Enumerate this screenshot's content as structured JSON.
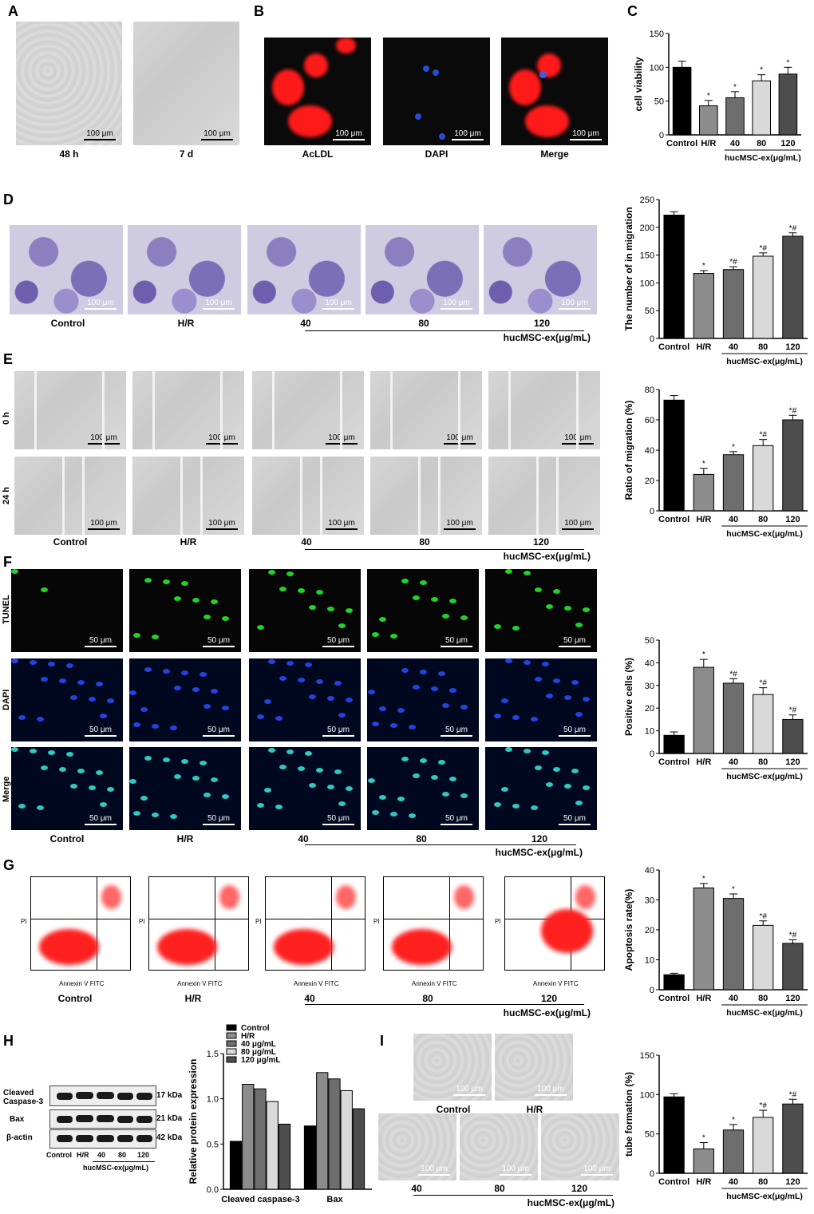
{
  "panels": {
    "A": {
      "label": "A",
      "captions": [
        "48 h",
        "7 d"
      ],
      "scale": "100 μm"
    },
    "B": {
      "label": "B",
      "captions": [
        "AcLDL",
        "DAPI",
        "Merge"
      ],
      "scale": "100 μm"
    },
    "C": {
      "label": "C"
    },
    "D": {
      "label": "D",
      "captions": [
        "Control",
        "H/R",
        "40",
        "80",
        "120"
      ],
      "group": "hucMSC-ex(μg/mL)",
      "scale": "100 μm"
    },
    "E": {
      "label": "E",
      "rows": [
        "0 h",
        "24 h"
      ],
      "captions": [
        "Control",
        "H/R",
        "40",
        "80",
        "120"
      ],
      "group": "hucMSC-ex(μg/mL)",
      "scale": "100 μm"
    },
    "F": {
      "label": "F",
      "rows": [
        "TUNEL",
        "DAPI",
        "Merge"
      ],
      "captions": [
        "Control",
        "H/R",
        "40",
        "80",
        "120"
      ],
      "group": "hucMSC-ex(μg/mL)",
      "scale": "50 μm"
    },
    "G": {
      "label": "G",
      "captions": [
        "Control",
        "H/R",
        "40",
        "80",
        "120"
      ],
      "group": "hucMSC-ex(μg/mL)",
      "xaxis": "Annexin V FITC",
      "yaxis": "PI"
    },
    "H": {
      "label": "H",
      "proteins": [
        "Cleaved Caspase-3",
        "Bax",
        "β-actin"
      ],
      "kda": [
        "17 kDa",
        "21 kDa",
        "42 kDa"
      ],
      "lanes": [
        "Control",
        "H/R",
        "40",
        "80",
        "120"
      ],
      "group": "hucMSC-ex(μg/mL)"
    },
    "I": {
      "label": "I",
      "captions": [
        "Control",
        "H/R",
        "40",
        "80",
        "120"
      ],
      "group": "hucMSC-ex(μg/mL)",
      "scale": "100 μm"
    }
  },
  "chart_data": [
    {
      "id": "C",
      "type": "bar",
      "categories": [
        "Control",
        "H/R",
        "40",
        "80",
        "120"
      ],
      "values": [
        100,
        43,
        55,
        80,
        90
      ],
      "errors": [
        9,
        8,
        9,
        9,
        10
      ],
      "marks": [
        "",
        "*",
        "*",
        "*",
        "*"
      ],
      "ylabel": "cell viability",
      "ylim": [
        0,
        150
      ],
      "yticks": [
        0,
        50,
        100,
        150
      ],
      "group": "hucMSC-ex(μg/mL)"
    },
    {
      "id": "D",
      "type": "bar",
      "categories": [
        "Control",
        "H/R",
        "40",
        "80",
        "120"
      ],
      "values": [
        222,
        117,
        124,
        148,
        184
      ],
      "errors": [
        6,
        5,
        5,
        6,
        6
      ],
      "marks": [
        "",
        "*",
        "*#",
        "*#",
        "*#"
      ],
      "ylabel": "The number of in migration",
      "ylim": [
        0,
        250
      ],
      "yticks": [
        0,
        50,
        100,
        150,
        200,
        250
      ],
      "group": "hucMSC-ex(μg/mL)"
    },
    {
      "id": "E",
      "type": "bar",
      "categories": [
        "Control",
        "H/R",
        "40",
        "80",
        "120"
      ],
      "values": [
        73,
        24,
        37,
        43,
        60
      ],
      "errors": [
        3,
        4,
        2,
        4,
        3
      ],
      "marks": [
        "",
        "*",
        "*",
        "*#",
        "*#"
      ],
      "ylabel": "Ratio of migration (%)",
      "ylim": [
        0,
        80
      ],
      "yticks": [
        0,
        20,
        40,
        60,
        80
      ],
      "group": "hucMSC-ex(μg/mL)"
    },
    {
      "id": "F",
      "type": "bar",
      "categories": [
        "Control",
        "H/R",
        "40",
        "80",
        "120"
      ],
      "values": [
        8,
        38,
        31,
        26,
        15
      ],
      "errors": [
        1.5,
        3.5,
        2,
        3,
        2
      ],
      "marks": [
        "",
        "*",
        "*#",
        "*#",
        "*#"
      ],
      "ylabel": "Positive cells (%)",
      "ylim": [
        0,
        50
      ],
      "yticks": [
        0,
        10,
        20,
        30,
        40,
        50
      ],
      "group": "hucMSC-ex(μg/mL)"
    },
    {
      "id": "G",
      "type": "bar",
      "categories": [
        "Control",
        "H/R",
        "40",
        "80",
        "120"
      ],
      "values": [
        5,
        34,
        30.5,
        21.5,
        15.5
      ],
      "errors": [
        0.5,
        1.5,
        1.5,
        1.5,
        1.2
      ],
      "marks": [
        "",
        "*",
        "*",
        "*#",
        "*#"
      ],
      "ylabel": "Apoptosis rate(%)",
      "ylim": [
        0,
        40
      ],
      "yticks": [
        0,
        10,
        20,
        30,
        40
      ],
      "group": "hucMSC-ex(μg/mL)"
    },
    {
      "id": "H",
      "type": "bar",
      "categories": [
        "Cleaved caspase-3",
        "Bax"
      ],
      "series": [
        {
          "name": "Control",
          "values": [
            0.53,
            0.7
          ]
        },
        {
          "name": "H/R",
          "values": [
            1.16,
            1.29
          ]
        },
        {
          "name": "40 μg/mL",
          "values": [
            1.11,
            1.22
          ]
        },
        {
          "name": "80 μg/mL",
          "values": [
            0.97,
            1.09
          ]
        },
        {
          "name": "120 μg/mL",
          "values": [
            0.72,
            0.89
          ]
        }
      ],
      "ylabel": "Relative protein expression",
      "ylim": [
        0,
        1.5
      ],
      "yticks": [
        0,
        0.5,
        1.0,
        1.5
      ]
    },
    {
      "id": "I",
      "type": "bar",
      "categories": [
        "Control",
        "H/R",
        "40",
        "80",
        "120"
      ],
      "values": [
        97,
        31,
        55,
        71,
        88
      ],
      "errors": [
        4,
        8,
        7,
        9,
        6
      ],
      "marks": [
        "",
        "*",
        "*",
        "*#",
        "*#"
      ],
      "ylabel": "tube formation (%)",
      "ylim": [
        0,
        150
      ],
      "yticks": [
        0,
        50,
        100,
        150
      ],
      "group": "hucMSC-ex(μg/mL)"
    }
  ],
  "colors": {
    "bars": [
      "#000000",
      "#8c8c8c",
      "#6e6e6e",
      "#d9d9d9",
      "#4d4d4d"
    ]
  }
}
